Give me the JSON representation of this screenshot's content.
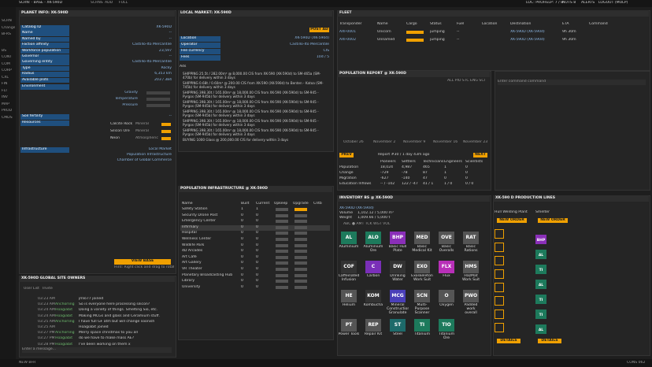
{
  "topbar": {
    "breadcrumb": "SCRN: · BASE - XK-590D",
    "buttons": [
      "SCRNS",
      "ADD",
      "FULL"
    ],
    "right": [
      "LOC: PRO",
      "HELP: 7 / 8",
      "NOTS 8",
      "ALERTS",
      "LOGOUT (MOLP)"
    ]
  },
  "sidebar": [
    "SCRN",
    "Change",
    "BFRS",
    "BS",
    "CONT",
    "COM",
    "CORP",
    "CXL",
    "FIN",
    "FLT",
    "INV",
    "MAP",
    "PROD",
    "CMDS"
  ],
  "planet": {
    "title": "PLANET INFO: XK-590D",
    "rows": [
      [
        "Catalog ID",
        "XK-590D"
      ],
      [
        "Name",
        "--"
      ],
      [
        "Named by",
        "--"
      ],
      [
        "Faction affinity",
        "Castillo-Ito Mercantile"
      ],
      [
        "Workforce population",
        "23,597"
      ],
      [
        "Governor",
        "--"
      ],
      [
        "Governing entity",
        "Castillo-Ito Mercantile"
      ],
      [
        "Type",
        "Rocky"
      ],
      [
        "Radius",
        "6,353 km"
      ],
      [
        "Available plots",
        "203 / 384"
      ]
    ],
    "environment_label": "Environment",
    "environment": [
      "Gravity",
      "Temperature",
      "Pressure"
    ],
    "soil": [
      "Soil fertility",
      "--"
    ],
    "resources_label": "Resources",
    "resources": [
      [
        "Calcite Rock",
        "Mineral"
      ],
      [
        "Silicon Ore",
        "Mineral"
      ],
      [
        "Neon",
        "Atmospheric"
      ]
    ],
    "infrastructure_label": "Infrastructure",
    "infrastructure": [
      "Local Market",
      "Population Infrastructure",
      "Chamber of Global Commerce"
    ],
    "view_base": "VIEW BASE",
    "hint": "Hint: Right click and drag to rotate"
  },
  "market": {
    "title": "LOCAL MARKET: XK-590D",
    "post": "POST AD",
    "rows": [
      [
        "Location",
        "XK-590D (XK-590d)"
      ],
      [
        "Operator",
        "Castillo-Ito Mercantile"
      ],
      [
        "Fee currency",
        "CIS"
      ],
      [
        "Fees",
        "10d / 5"
      ]
    ],
    "ads_label": "Ads",
    "ads": [
      "SHIPPING 25.5t / 282.00m³ @ 8,000.00 CIS from XK-590 (XK-590d) to SM-465a (SM-470b) for delivery within 3 days",
      "SHIPPING 0.68t / 0.60m³ @ 200.00 CIS from XK-590 (XK-590d) to Benten - Katoa (SM-745b) for delivery within 3 days",
      "SHIPPING 398.30t / 165.00m³ @ 18,000.00 CIS from XK-590 (XK-590d) to SM-945 - Pyrgos (SM-945b) for delivery within 3 days",
      "SHIPPING 398.30t / 165.00m³ @ 18,000.00 CIS from XK-590 (XK-590d) to SM-945 - Pyrgos (SM-945b) for delivery within 3 days",
      "SHIPPING 398.30t / 165.00m³ @ 18,000.00 CIS from XK-590 (XK-590d) to SM-945 - Pyrgos (SM-945b) for delivery within 3 days",
      "SHIPPING 398.30t / 165.00m³ @ 18,000.00 CIS from XK-590 (XK-590d) to SM-945 - Pyrgos (SM-945b) for delivery within 3 days",
      "SHIPPING 398.30t / 165.00m³ @ 18,000.00 CIS from XK-590 (XK-590d) to SM-945 - Pyrgos (SM-945b) for delivery within 3 days",
      "BUYING 1000 Glass @ 200,000.00 CIS for delivery within 3 days"
    ]
  },
  "fleet": {
    "title": "FLEET",
    "headers": [
      "Transponder",
      "Name",
      "Cargo",
      "Status",
      "Fuel",
      "Location",
      "Destination",
      "ETA",
      "Command"
    ],
    "rows": [
      [
        "AXI-0001",
        "Unicorn",
        "jumping",
        "--",
        "XK-590D (XK-590d)",
        "9h 30m"
      ],
      [
        "AXI-0002",
        "Unnamed",
        "jumping",
        "--",
        "XK-590D (XK-590d)",
        "9h 30m"
      ]
    ]
  },
  "report": {
    "title": "POPULATION REPORT @ XK-590D",
    "legend": "ALL PIO STC ENG SCI",
    "dates": [
      "October 26",
      "November 2",
      "November 9",
      "November 16",
      "November 23"
    ],
    "prev": "PREV",
    "next": "NEXT",
    "report": "Report #30 / 1 day 43m ago",
    "headers": [
      "Pioneers",
      "Settlers",
      "Technicians",
      "Engineers",
      "Scientists"
    ],
    "rows": [
      [
        "Population",
        "18,024",
        "4,987",
        "465",
        "1",
        "0"
      ],
      [
        "Change",
        "-729",
        "-78",
        "87",
        "1",
        "0"
      ],
      [
        "Migration",
        "-627",
        "-140",
        "47",
        "0",
        "0"
      ],
      [
        "Education Inflows",
        "-- / -102",
        "122 / -47",
        "41 / 1",
        "1 / 0",
        "0 / 0"
      ]
    ]
  },
  "command": {
    "placeholder": "Enter command command"
  },
  "infra": {
    "title": "POPULATION INFRASTRUCTURE @ XK-590D",
    "headers": [
      "Name",
      "Built",
      "Current",
      "Upkeep",
      "Upgrade",
      "Cntb"
    ],
    "rows": [
      [
        "Safety Station",
        "1",
        "1"
      ],
      [
        "Security Drone Post",
        "0",
        "0"
      ],
      [
        "Emergency Center",
        "0",
        "0"
      ],
      [
        "Infirmary",
        "0",
        "0"
      ],
      [
        "Hospital",
        "0",
        "0"
      ],
      [
        "Wellness Center",
        "0",
        "0"
      ],
      [
        "Wildlife Park",
        "0",
        "0"
      ],
      [
        "4D Arcades",
        "0",
        "0"
      ],
      [
        "Art Café",
        "0",
        "0"
      ],
      [
        "Art Gallery",
        "0",
        "0"
      ],
      [
        "VR Theater",
        "0",
        "0"
      ],
      [
        "Planetary Broadcasting Hub",
        "0",
        "0"
      ],
      [
        "Library",
        "0",
        "0"
      ],
      [
        "University",
        "0",
        "0"
      ]
    ]
  },
  "owners": {
    "title": "XK-590D GLOBAL SITE OWNERS",
    "tabs": [
      "User List",
      "Invite"
    ],
    "messages": [
      [
        "03:23 AM",
        "",
        "jmlo77 joined"
      ],
      [
        "03:23 AM",
        "Anchorling",
        "So is everyone here processing silicon?"
      ],
      [
        "03:24 AM",
        "Hoagiabit",
        "Doing a variety of things. Smelting Sio, etc."
      ],
      [
        "03:24 AM",
        "Hoagiabit",
        "Making MCGs and glass and Ceramium stuff."
      ],
      [
        "03:25 AM",
        "Anchorling",
        "I have full GF atm but will change soonish"
      ],
      [
        "03:25 AM",
        "",
        "Hoagiabit joined"
      ],
      [
        "03:27 PM",
        "Anchorling",
        "Merry space christmas to you all"
      ],
      [
        "03:27 PM",
        "Hoagiabit",
        "do we have to make mass AE?"
      ],
      [
        "03:28 PM",
        "Hoagiabit",
        "I've been working on them x"
      ]
    ],
    "input": "Enter a message..."
  },
  "inventory": {
    "title": "INVENTORY BS @ XK-590D",
    "location": "XK-590D (XK-590d)",
    "volume": [
      "Volume",
      "1,102.12 / 5,000 m³"
    ],
    "weight": [
      "Weight",
      "1,009.66 / 5,000 t"
    ],
    "sort": "ABC ● AMT TCK WGT VOL",
    "items": [
      [
        "AL",
        "Aluminium",
        "#1d7a5c"
      ],
      [
        "ALO",
        "Aluminium Ore",
        "#1d7a5c"
      ],
      [
        "BHP",
        "Basic Hull Plate",
        "#8a2fb8"
      ],
      [
        "MED",
        "Basic Medical Kit",
        "#555"
      ],
      [
        "OVE",
        "Basic Overalls",
        "#555"
      ],
      [
        "RAT",
        "Basic Rations",
        "#555"
      ],
      [
        "COF",
        "Caffeinated Infusion",
        "#333"
      ],
      [
        "C",
        "Carbon",
        "#7a2fb8"
      ],
      [
        "DW",
        "Drinking Water",
        "#333"
      ],
      [
        "EXO",
        "Exoskeleton Work Suit",
        "#555"
      ],
      [
        "FLX",
        "Flux",
        "#b82fb8"
      ],
      [
        "HMS",
        "HazMat Work Suit",
        "#555"
      ],
      [
        "HE",
        "Helium",
        "#555"
      ],
      [
        "KOM",
        "Kombucha",
        "#333"
      ],
      [
        "MCG",
        "Mineral Construction Granulate",
        "#4a3fb8"
      ],
      [
        "SCN",
        "Multi-Purpose Scanner",
        "#555"
      ],
      [
        "O",
        "Oxygen",
        "#555"
      ],
      [
        "PWO",
        "Padded work overall",
        "#555"
      ],
      [
        "PT",
        "Power Tools",
        "#555"
      ],
      [
        "REP",
        "Repair Kit",
        "#555"
      ],
      [
        "ST",
        "Steel",
        "#1d6a6a"
      ],
      [
        "TI",
        "Titanium",
        "#1d7a5c"
      ],
      [
        "TIO",
        "Titanium Ore",
        "#1d7a5c"
      ]
    ]
  },
  "production": {
    "title": "XK-590 D PRODUCTION LINES",
    "lines": [
      "Hull Welding Plant",
      "Smelter"
    ],
    "new_order": "NEW ORDER",
    "details": "DETAILS",
    "orders": [
      "BHP",
      "AL",
      "TI",
      "AL",
      "TI",
      "TI",
      "AL"
    ]
  },
  "bottombar": {
    "left": "NEW BFR",
    "right": "CONS 062"
  }
}
